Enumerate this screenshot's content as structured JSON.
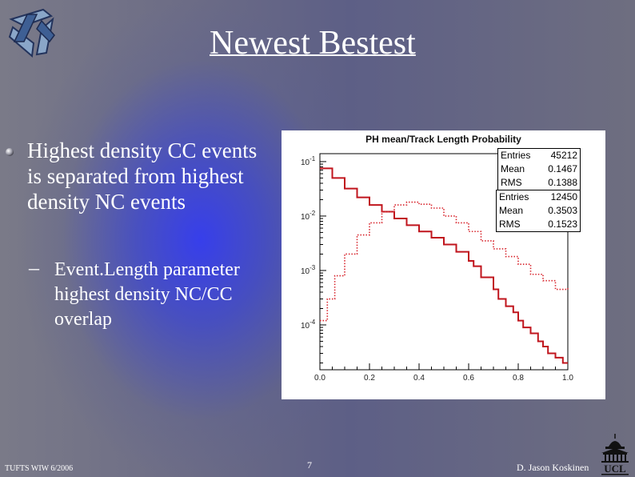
{
  "slide": {
    "title": "Newest Bestest",
    "bullet": "Highest density CC events is separated from highest density NC events",
    "sub_bullet_marker": "–",
    "sub_bullet": "Event.Length parameter highest density NC/CC overlap",
    "footer_left": "TUFTS WIW 6/2006",
    "page_number": "7",
    "footer_right": "D. Jason Koskinen",
    "logo_icon": "tufts-star-logo-icon",
    "institution_logo_icon": "ucl-portico-logo-icon",
    "institution_logo_text": "UCL"
  },
  "chart_data": {
    "type": "line",
    "title": "PH mean/Track Length Probability",
    "xlabel": "",
    "ylabel": "",
    "x_ticks": [
      "0.0",
      "0.2",
      "0.4",
      "0.6",
      "0.8",
      "1.0"
    ],
    "y_ticks": [
      "10^-1",
      "10^-2",
      "10^-3",
      "10^-4"
    ],
    "xlim": [
      0,
      1
    ],
    "ylim": [
      1.5e-05,
      0.14
    ],
    "y_scale": "log",
    "grid": false,
    "stats_boxes": [
      {
        "rows": [
          {
            "label": "Entries",
            "value": "45212"
          },
          {
            "label": "Mean",
            "value": "0.1467"
          },
          {
            "label": "RMS",
            "value": "0.1388"
          }
        ]
      },
      {
        "rows": [
          {
            "label": "Entries",
            "value": "12450"
          },
          {
            "label": "Mean",
            "value": "0.3503"
          },
          {
            "label": "RMS",
            "value": "0.1523"
          }
        ]
      }
    ],
    "series": [
      {
        "color": "#c0151d",
        "style": "solid",
        "x": [
          0.0,
          0.05,
          0.1,
          0.15,
          0.2,
          0.25,
          0.3,
          0.35,
          0.4,
          0.45,
          0.5,
          0.55,
          0.6,
          0.62,
          0.65,
          0.7,
          0.72,
          0.75,
          0.78,
          0.8,
          0.82,
          0.85,
          0.88,
          0.9,
          0.92,
          0.95,
          0.98,
          1.0
        ],
        "y": [
          0.075,
          0.05,
          0.032,
          0.022,
          0.016,
          0.012,
          0.009,
          0.0068,
          0.0052,
          0.004,
          0.003,
          0.0022,
          0.0015,
          0.0012,
          0.00075,
          0.00045,
          0.0003,
          0.00022,
          0.00017,
          0.00012,
          9e-05,
          7e-05,
          5e-05,
          4e-05,
          3e-05,
          2.5e-05,
          2e-05,
          2e-05
        ]
      },
      {
        "color": "#d8262e",
        "style": "dotted",
        "x": [
          0.0,
          0.03,
          0.06,
          0.1,
          0.15,
          0.2,
          0.25,
          0.3,
          0.35,
          0.4,
          0.45,
          0.5,
          0.55,
          0.6,
          0.65,
          0.7,
          0.75,
          0.8,
          0.85,
          0.9,
          0.95,
          1.0
        ],
        "y": [
          0.00012,
          0.0003,
          0.0008,
          0.002,
          0.0045,
          0.0075,
          0.012,
          0.016,
          0.018,
          0.0165,
          0.014,
          0.01,
          0.0075,
          0.0052,
          0.0035,
          0.0025,
          0.0018,
          0.0013,
          0.00085,
          0.00065,
          0.00045,
          0.0005
        ]
      }
    ]
  }
}
